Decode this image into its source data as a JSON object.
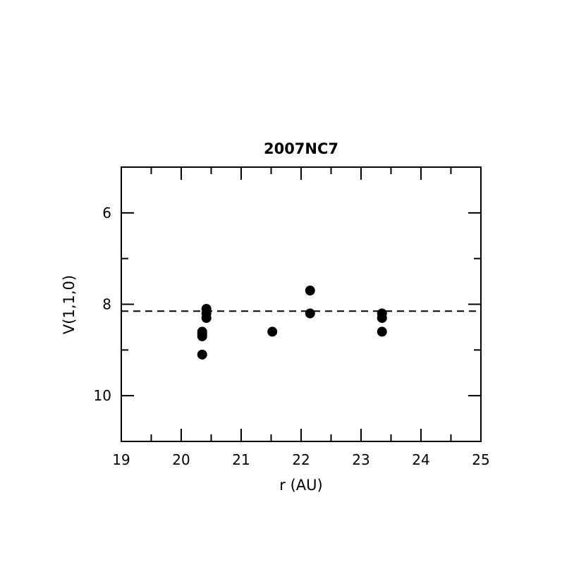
{
  "chart_data": {
    "type": "scatter",
    "title": "2007NC7",
    "xlabel": "r (AU)",
    "ylabel": "V(1,1,0)",
    "xlim": [
      19,
      25
    ],
    "ylim": [
      11,
      5
    ],
    "y_inverted": true,
    "x_ticks": [
      "19",
      "20",
      "21",
      "22",
      "23",
      "24",
      "25"
    ],
    "y_ticks": [
      "6",
      "8",
      "10"
    ],
    "grid": false,
    "reference_line": {
      "y": 8.15,
      "style": "dashed"
    },
    "marker_color": "#000000",
    "points": [
      {
        "x": 20.35,
        "y": 8.6
      },
      {
        "x": 20.35,
        "y": 8.65
      },
      {
        "x": 20.35,
        "y": 8.7
      },
      {
        "x": 20.35,
        "y": 9.1
      },
      {
        "x": 20.42,
        "y": 8.1
      },
      {
        "x": 20.42,
        "y": 8.2
      },
      {
        "x": 20.42,
        "y": 8.3
      },
      {
        "x": 21.52,
        "y": 8.6
      },
      {
        "x": 22.15,
        "y": 7.7
      },
      {
        "x": 22.15,
        "y": 8.2
      },
      {
        "x": 23.35,
        "y": 8.2
      },
      {
        "x": 23.35,
        "y": 8.3
      },
      {
        "x": 23.35,
        "y": 8.6
      }
    ]
  }
}
